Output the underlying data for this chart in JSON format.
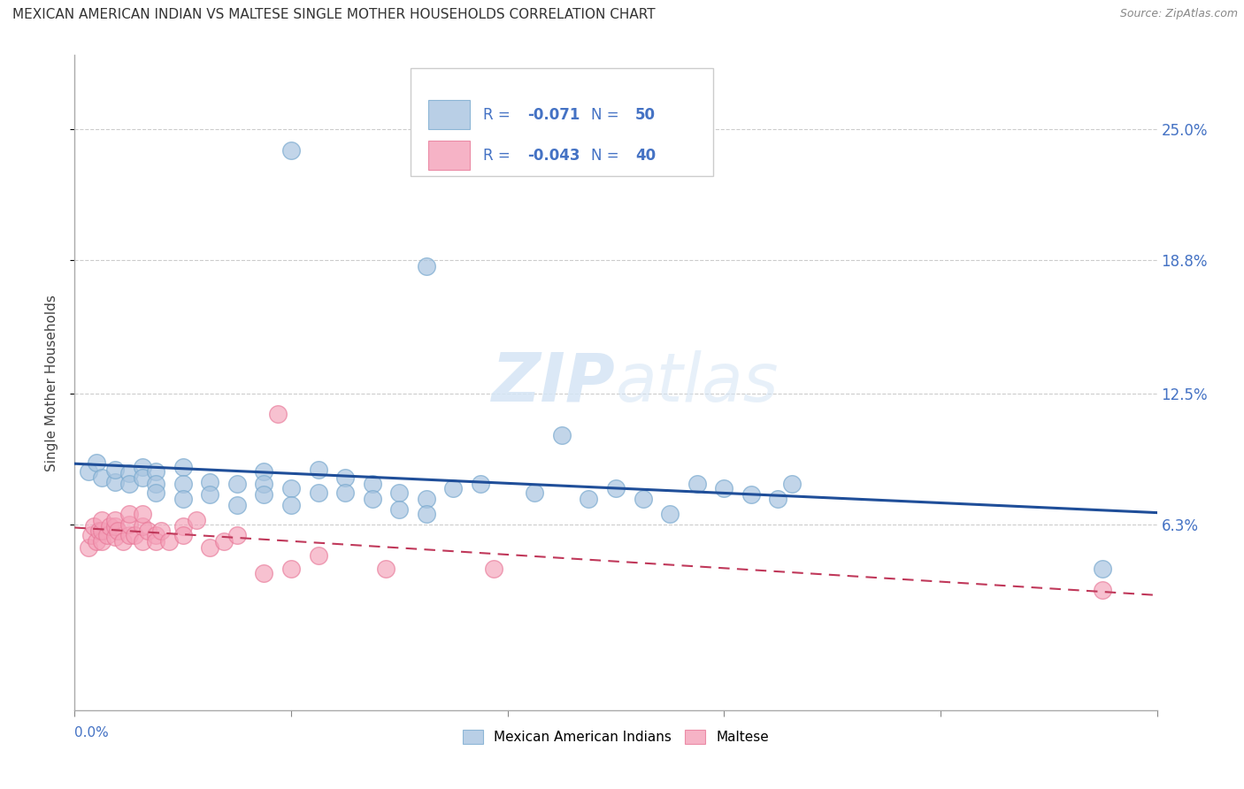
{
  "title": "MEXICAN AMERICAN INDIAN VS MALTESE SINGLE MOTHER HOUSEHOLDS CORRELATION CHART",
  "source": "Source: ZipAtlas.com",
  "ylabel": "Single Mother Households",
  "yticks_labels": [
    "25.0%",
    "18.8%",
    "12.5%",
    "6.3%"
  ],
  "yticks_values": [
    0.25,
    0.188,
    0.125,
    0.063
  ],
  "xlim": [
    0.0,
    0.4
  ],
  "ylim": [
    -0.025,
    0.285
  ],
  "legend_blue_R": "-0.071",
  "legend_blue_N": "50",
  "legend_pink_R": "-0.043",
  "legend_pink_N": "40",
  "blue_color": "#A8C4E0",
  "pink_color": "#F4A0B8",
  "blue_scatter_edge": "#7AAACF",
  "pink_scatter_edge": "#E87898",
  "blue_line_color": "#1F4E99",
  "pink_line_color": "#C0385A",
  "legend_text_color": "#4472C4",
  "watermark_color": "#D5E5F5",
  "blue_scatter_x": [
    0.005,
    0.008,
    0.01,
    0.015,
    0.015,
    0.02,
    0.02,
    0.025,
    0.025,
    0.03,
    0.03,
    0.03,
    0.04,
    0.04,
    0.04,
    0.05,
    0.05,
    0.06,
    0.06,
    0.07,
    0.07,
    0.07,
    0.08,
    0.08,
    0.09,
    0.09,
    0.1,
    0.1,
    0.11,
    0.11,
    0.12,
    0.12,
    0.13,
    0.13,
    0.14,
    0.15,
    0.17,
    0.18,
    0.19,
    0.2,
    0.21,
    0.22,
    0.23,
    0.24,
    0.25,
    0.26,
    0.265,
    0.38,
    0.08,
    0.13
  ],
  "blue_scatter_y": [
    0.088,
    0.092,
    0.085,
    0.083,
    0.089,
    0.087,
    0.082,
    0.09,
    0.085,
    0.088,
    0.082,
    0.078,
    0.09,
    0.082,
    0.075,
    0.083,
    0.077,
    0.072,
    0.082,
    0.088,
    0.082,
    0.077,
    0.08,
    0.072,
    0.089,
    0.078,
    0.085,
    0.078,
    0.082,
    0.075,
    0.078,
    0.07,
    0.075,
    0.068,
    0.08,
    0.082,
    0.078,
    0.105,
    0.075,
    0.08,
    0.075,
    0.068,
    0.082,
    0.08,
    0.077,
    0.075,
    0.082,
    0.042,
    0.24,
    0.185
  ],
  "pink_scatter_x": [
    0.005,
    0.006,
    0.007,
    0.008,
    0.009,
    0.01,
    0.01,
    0.01,
    0.012,
    0.013,
    0.015,
    0.015,
    0.015,
    0.016,
    0.018,
    0.02,
    0.02,
    0.02,
    0.022,
    0.025,
    0.025,
    0.025,
    0.027,
    0.03,
    0.03,
    0.032,
    0.035,
    0.04,
    0.04,
    0.045,
    0.05,
    0.055,
    0.06,
    0.07,
    0.075,
    0.08,
    0.09,
    0.115,
    0.155,
    0.38
  ],
  "pink_scatter_y": [
    0.052,
    0.058,
    0.062,
    0.055,
    0.06,
    0.055,
    0.06,
    0.065,
    0.058,
    0.062,
    0.057,
    0.062,
    0.065,
    0.06,
    0.055,
    0.058,
    0.063,
    0.068,
    0.058,
    0.055,
    0.062,
    0.068,
    0.06,
    0.058,
    0.055,
    0.06,
    0.055,
    0.062,
    0.058,
    0.065,
    0.052,
    0.055,
    0.058,
    0.04,
    0.115,
    0.042,
    0.048,
    0.042,
    0.042,
    0.032
  ]
}
